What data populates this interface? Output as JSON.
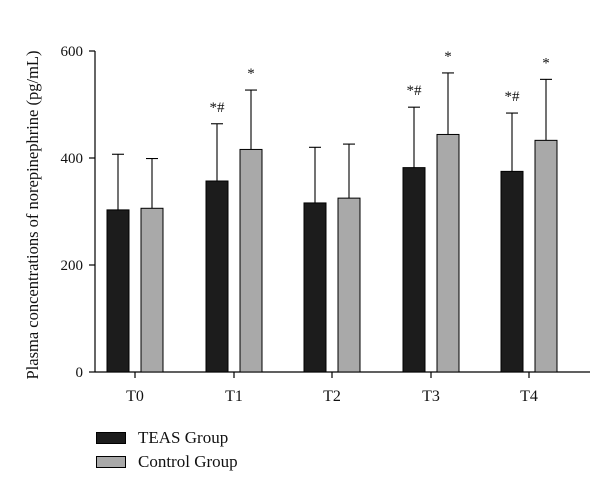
{
  "chart_data": {
    "type": "bar",
    "categories": [
      "T0",
      "T1",
      "T2",
      "T3",
      "T4"
    ],
    "series": [
      {
        "name": "TEAS Group",
        "values": [
          303,
          357,
          316,
          382,
          375
        ],
        "error": [
          104,
          107,
          104,
          113,
          109
        ],
        "annotations": [
          "",
          "*#",
          "",
          "*#",
          "*#"
        ]
      },
      {
        "name": "Control Group",
        "values": [
          306,
          416,
          325,
          444,
          433
        ],
        "error": [
          93,
          111,
          101,
          115,
          114
        ],
        "annotations": [
          "",
          "*",
          "",
          "*",
          "*"
        ]
      }
    ],
    "ylabel": "Plasma concentrations of norepinephrine (pg/mL)",
    "xlabel": "",
    "ylim": [
      0,
      600
    ],
    "yticks": [
      0,
      200,
      400,
      600
    ],
    "grid": false,
    "legend_position": "bottom-left",
    "colors": {
      "TEAS Group": "#1c1c1c",
      "Control Group": "#a9a9a9"
    }
  }
}
